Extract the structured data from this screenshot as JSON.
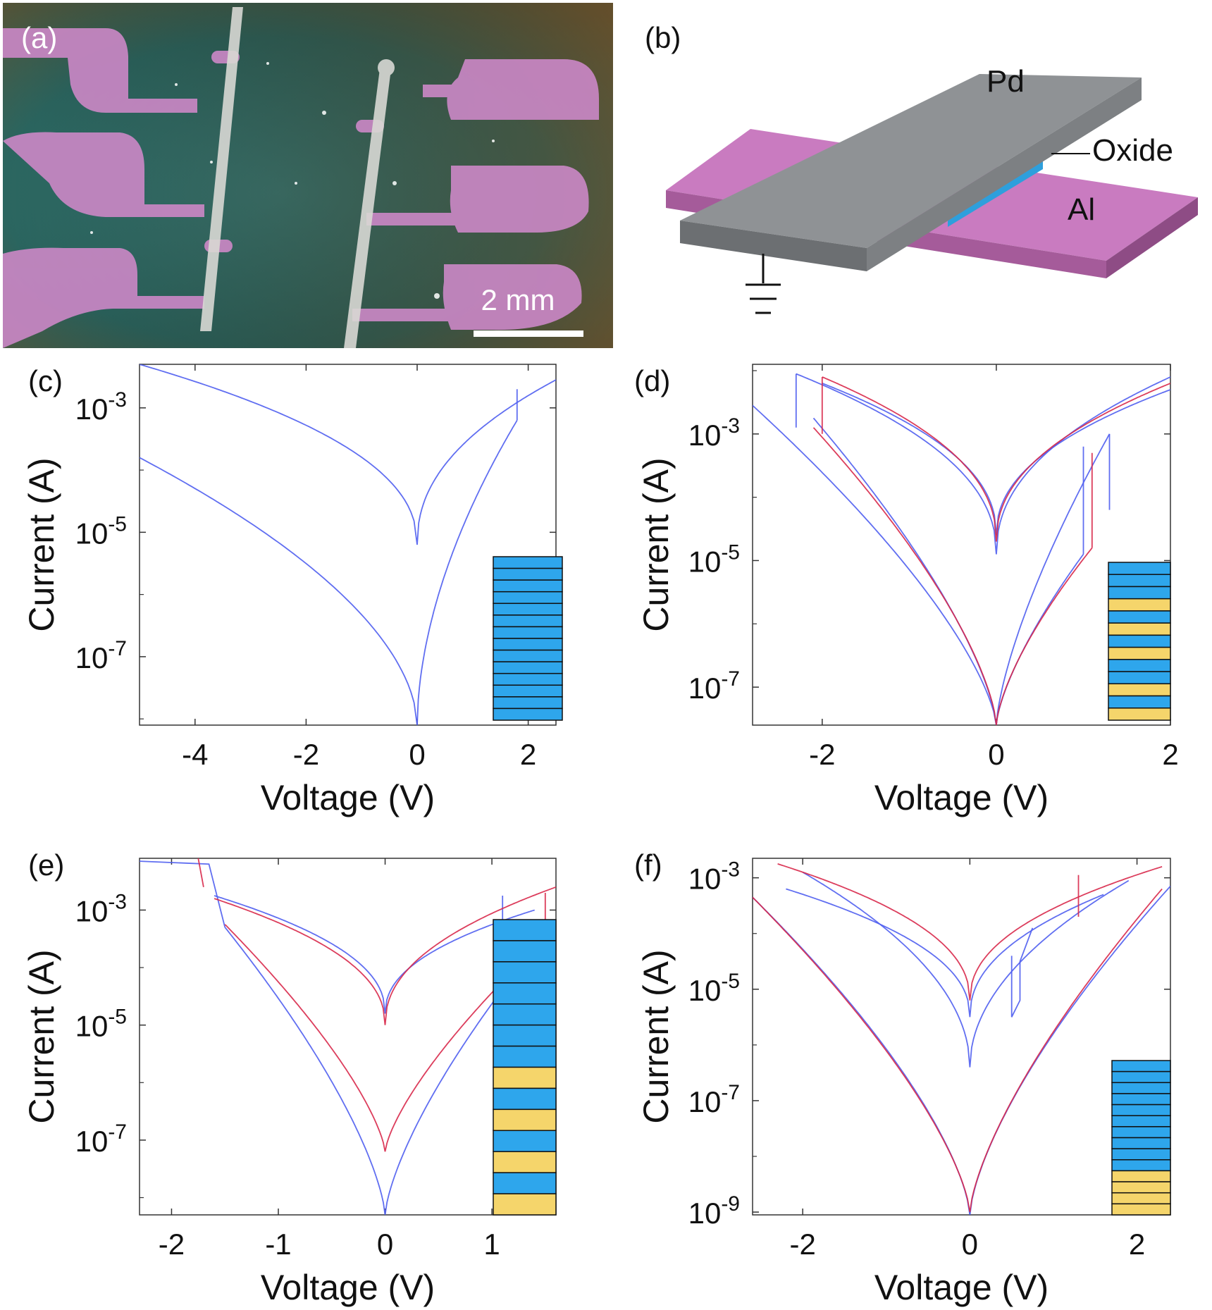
{
  "panel_a": {
    "label": "(a)",
    "scale_bar": "2 mm",
    "colors": {
      "background": "#2f6e6a",
      "electrode": "#c987c4",
      "top_line": "#d8d8d4"
    }
  },
  "panel_b": {
    "label": "(b)",
    "layers": {
      "top": "Pd",
      "middle": "Oxide",
      "bottom": "Al"
    },
    "colors": {
      "top": "#8f9295",
      "middle": "#3db7f2",
      "bottom": "#c97bc0"
    },
    "icon": "ground-symbol-icon"
  },
  "colors": {
    "blue": "#4f5ef0",
    "red": "#d8284a",
    "stack_blue": "#2ea6ec",
    "stack_yellow": "#f5d56b"
  },
  "chart_data": [
    {
      "panel": "(c)",
      "type": "line",
      "yscale": "log",
      "xlabel": "Voltage (V)",
      "ylabel": "Current (A)",
      "xlim": [
        -5,
        2.5
      ],
      "ylim_log10": [
        -8.1,
        -2.3
      ],
      "xticks": [
        -4,
        -2,
        0,
        2
      ],
      "yticks_log10": [
        -3,
        -5,
        -7
      ],
      "ytick_labels": [
        "10-3",
        "10-5",
        "10-7"
      ],
      "stack": [
        "B",
        "B",
        "B",
        "B",
        "B",
        "B",
        "B",
        "B",
        "B",
        "B",
        "B",
        "B",
        "B",
        "B"
      ],
      "series": [
        {
          "color": "blue",
          "curves": [
            {
              "kind": "v",
              "x_left": -5,
              "x_right": 1.8,
              "y_left": -3.8,
              "y_right": -3.2,
              "y_min": -8.1,
              "p": 0.55
            },
            {
              "kind": "v",
              "x_left": -5,
              "x_right": 2.5,
              "y_left": -2.3,
              "y_right": -2.55,
              "y_min": -5.2,
              "p": 0.45
            },
            {
              "kind": "seg",
              "points": [
                [
                  1.8,
                  -3.2
                ],
                [
                  1.8,
                  -2.7
                ]
              ]
            }
          ]
        }
      ]
    },
    {
      "panel": "(d)",
      "type": "line",
      "yscale": "log",
      "xlabel": "Voltage (V)",
      "ylabel": "Current (A)",
      "xlim": [
        -2.8,
        2
      ],
      "ylim_log10": [
        -7.6,
        -1.9
      ],
      "xticks": [
        -2,
        0,
        2
      ],
      "yticks_log10": [
        -3,
        -5,
        -7
      ],
      "ytick_labels": [
        "10-3",
        "10-5",
        "10-7"
      ],
      "stack": [
        "B",
        "B",
        "B",
        "Y",
        "B",
        "Y",
        "B",
        "Y",
        "B",
        "B",
        "Y",
        "B",
        "Y"
      ],
      "series": [
        {
          "color": "blue",
          "curves": [
            {
              "kind": "v",
              "x_left": -2.8,
              "x_right": 1.3,
              "y_left": -2.55,
              "y_right": -3.0,
              "y_min": -7.6,
              "p": 0.7
            },
            {
              "kind": "v",
              "x_left": -2.1,
              "x_right": 1.0,
              "y_left": -2.75,
              "y_right": -4.9,
              "y_min": -7.6,
              "p": 0.7
            },
            {
              "kind": "v",
              "x_left": -2.3,
              "x_right": 2.0,
              "y_left": -2.05,
              "y_right": -2.1,
              "y_min": -4.9,
              "p": 0.45
            },
            {
              "kind": "v",
              "x_left": -2.0,
              "x_right": 2.0,
              "y_left": -2.2,
              "y_right": -2.3,
              "y_min": -4.6,
              "p": 0.45
            },
            {
              "kind": "seg",
              "points": [
                [
                  -2.3,
                  -2.9
                ],
                [
                  -2.3,
                  -2.05
                ]
              ]
            },
            {
              "kind": "seg",
              "points": [
                [
                  1.3,
                  -4.2
                ],
                [
                  1.3,
                  -3.0
                ]
              ]
            },
            {
              "kind": "seg",
              "points": [
                [
                  1.0,
                  -4.9
                ],
                [
                  1.0,
                  -3.2
                ]
              ]
            }
          ]
        },
        {
          "color": "red",
          "curves": [
            {
              "kind": "v",
              "x_left": -2.1,
              "x_right": 1.1,
              "y_left": -2.9,
              "y_right": -4.8,
              "y_min": -7.6,
              "p": 0.68
            },
            {
              "kind": "v",
              "x_left": -2.0,
              "x_right": 2.0,
              "y_left": -2.1,
              "y_right": -2.2,
              "y_min": -4.7,
              "p": 0.45
            },
            {
              "kind": "seg",
              "points": [
                [
                  -2.0,
                  -3.0
                ],
                [
                  -2.0,
                  -2.1
                ]
              ]
            },
            {
              "kind": "seg",
              "points": [
                [
                  1.1,
                  -4.8
                ],
                [
                  1.1,
                  -3.3
                ]
              ]
            }
          ]
        }
      ]
    },
    {
      "panel": "(e)",
      "type": "line",
      "yscale": "log",
      "xlabel": "Voltage (V)",
      "ylabel": "Current (A)",
      "xlim": [
        -2.3,
        1.6
      ],
      "ylim_log10": [
        -8.3,
        -2.1
      ],
      "xticks": [
        -2,
        -1,
        0,
        1
      ],
      "yticks_log10": [
        -3,
        -5,
        -7
      ],
      "ytick_labels": [
        "10-3",
        "10-5",
        "10-7"
      ],
      "stack": [
        "B",
        "B",
        "B",
        "B",
        "B",
        "B",
        "B",
        "Y",
        "B",
        "Y",
        "B",
        "Y",
        "B",
        "Y"
      ],
      "series": [
        {
          "color": "blue",
          "curves": [
            {
              "kind": "v",
              "x_left": -1.6,
              "x_right": 1.4,
              "y_left": -2.75,
              "y_right": -3.0,
              "y_min": -4.8,
              "p": 0.45
            },
            {
              "kind": "v",
              "x_left": -1.5,
              "x_right": 1.6,
              "y_left": -3.3,
              "y_right": -3.2,
              "y_min": -8.3,
              "p": 0.7
            },
            {
              "kind": "seg",
              "points": [
                [
                  -2.3,
                  -2.15
                ],
                [
                  -1.65,
                  -2.2
                ],
                [
                  -1.5,
                  -3.3
                ]
              ]
            },
            {
              "kind": "seg",
              "points": [
                [
                  1.1,
                  -3.5
                ],
                [
                  1.1,
                  -2.75
                ]
              ]
            }
          ]
        },
        {
          "color": "red",
          "curves": [
            {
              "kind": "v",
              "x_left": -1.6,
              "x_right": 1.6,
              "y_left": -2.8,
              "y_right": -2.6,
              "y_min": -5.0,
              "p": 0.45
            },
            {
              "kind": "v",
              "x_left": -1.5,
              "x_right": 1.5,
              "y_left": -3.25,
              "y_right": -3.5,
              "y_min": -7.2,
              "p": 0.72
            },
            {
              "kind": "seg",
              "points": [
                [
                  -1.75,
                  -2.1
                ],
                [
                  -1.7,
                  -2.6
                ]
              ]
            },
            {
              "kind": "seg",
              "points": [
                [
                  1.5,
                  -3.5
                ],
                [
                  1.5,
                  -2.7
                ]
              ]
            }
          ]
        }
      ]
    },
    {
      "panel": "(f)",
      "type": "line",
      "yscale": "log",
      "xlabel": "Voltage (V)",
      "ylabel": "Current (A)",
      "xlim": [
        -2.6,
        2.4
      ],
      "ylim_log10": [
        -9.05,
        -2.65
      ],
      "xticks": [
        -2,
        0,
        2
      ],
      "yticks_log10": [
        -3,
        -5,
        -7,
        -9
      ],
      "ytick_labels": [
        "10-3",
        "10-5",
        "10-7",
        "10-9"
      ],
      "stack": [
        "B",
        "B",
        "B",
        "B",
        "B",
        "B",
        "B",
        "B",
        "B",
        "B",
        "Y",
        "Y",
        "Y",
        "Y"
      ],
      "series": [
        {
          "color": "blue",
          "curves": [
            {
              "kind": "v",
              "x_left": -2.6,
              "x_right": 2.4,
              "y_left": -3.35,
              "y_right": -3.15,
              "y_min": -9.05,
              "p": 0.68
            },
            {
              "kind": "v",
              "x_left": -2.0,
              "x_right": 1.9,
              "y_left": -2.9,
              "y_right": -3.05,
              "y_min": -6.4,
              "p": 0.5
            },
            {
              "kind": "v",
              "x_left": -2.2,
              "x_right": 1.6,
              "y_left": -3.2,
              "y_right": -3.3,
              "y_min": -5.5,
              "p": 0.45
            },
            {
              "kind": "seg",
              "points": [
                [
                  0.5,
                  -4.4
                ],
                [
                  0.5,
                  -5.5
                ],
                [
                  0.6,
                  -5.2
                ],
                [
                  0.6,
                  -4.5
                ],
                [
                  0.75,
                  -3.9
                ]
              ]
            }
          ]
        },
        {
          "color": "red",
          "curves": [
            {
              "kind": "v",
              "x_left": -2.3,
              "x_right": 2.3,
              "y_left": -2.75,
              "y_right": -2.8,
              "y_min": -5.2,
              "p": 0.45
            },
            {
              "kind": "v",
              "x_left": -2.6,
              "x_right": 2.3,
              "y_left": -3.35,
              "y_right": -3.2,
              "y_min": -9.0,
              "p": 0.7
            },
            {
              "kind": "seg",
              "points": [
                [
                  1.3,
                  -3.7
                ],
                [
                  1.3,
                  -2.95
                ]
              ]
            }
          ]
        }
      ]
    }
  ]
}
